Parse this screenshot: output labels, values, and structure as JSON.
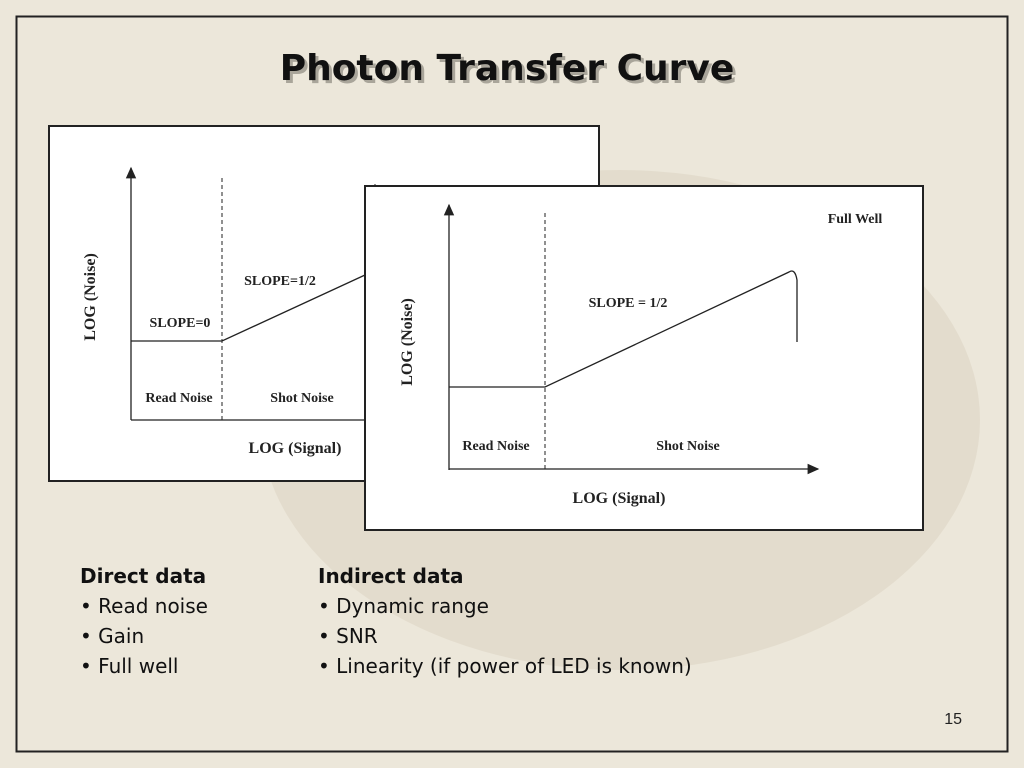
{
  "title": "Photon Transfer Curve",
  "diagram_back": {
    "y_axis": "LOG (Noise)",
    "x_axis": "LOG (Signal)",
    "slope_flat": "SLOPE=0",
    "slope_half": "SLOPE=1/2",
    "region_left": "Read Noise",
    "region_mid": "Shot Noise"
  },
  "diagram_front": {
    "y_axis": "LOG (Noise)",
    "x_axis": "LOG (Signal)",
    "full_well": "Full Well",
    "slope_half": "SLOPE = 1/2",
    "region_left": "Read Noise",
    "region_mid": "Shot Noise"
  },
  "direct": {
    "heading": "Direct data",
    "items": [
      "• Read noise",
      "• Gain",
      "• Full well"
    ]
  },
  "indirect": {
    "heading": "Indirect data",
    "items": [
      "• Dynamic range",
      "• SNR",
      "• Linearity (if power of LED is known)"
    ]
  },
  "page_number": "15"
}
